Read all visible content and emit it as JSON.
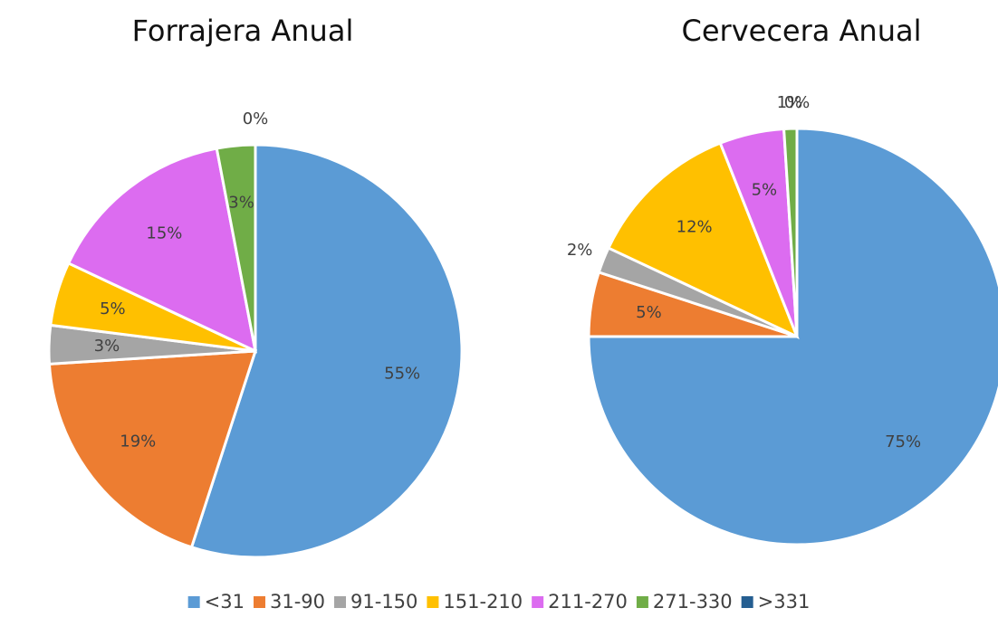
{
  "chart_data": [
    {
      "type": "pie",
      "title": "Forrajera Anual",
      "values": [
        55,
        19,
        3,
        5,
        15,
        3,
        0
      ],
      "value_labels": [
        "55%",
        "19%",
        "3%",
        "5%",
        "15%",
        "3%",
        "0%"
      ]
    },
    {
      "type": "pie",
      "title": "Cervecera Anual",
      "values": [
        75,
        5,
        2,
        12,
        5,
        1,
        0
      ],
      "value_labels": [
        "75%",
        "5%",
        "2%",
        "12%",
        "5%",
        "1%",
        "0%"
      ]
    }
  ],
  "legend": {
    "categories": [
      "<31",
      "31-90",
      "91-150",
      "151-210",
      "211-270",
      "271-330",
      ">331"
    ],
    "colors": [
      "#5b9bd5",
      "#ed7d31",
      "#a5a5a5",
      "#ffc000",
      "#dc6cf0",
      "#70ad47",
      "#255e91"
    ]
  }
}
